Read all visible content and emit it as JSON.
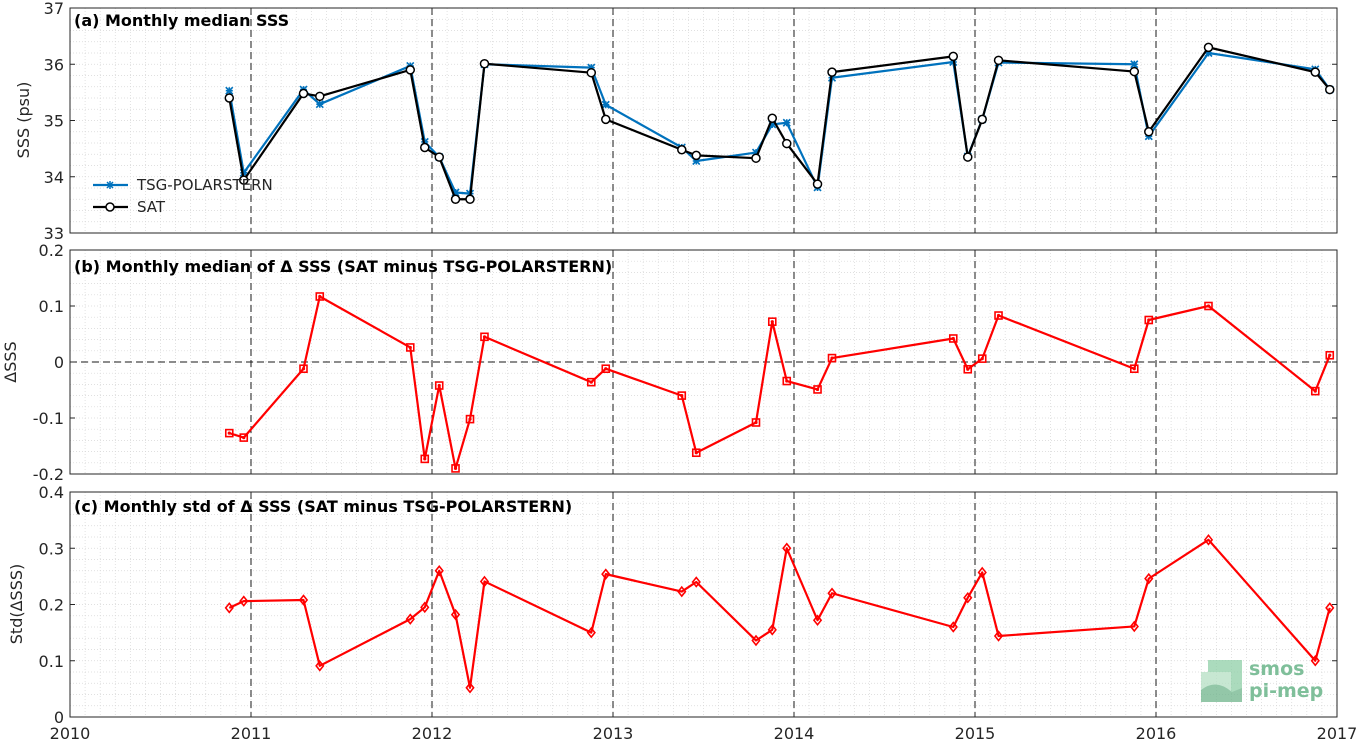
{
  "chart_data": [
    {
      "type": "line",
      "title": "(a) Monthly median SSS",
      "ylabel": "SSS (psu)",
      "xlim": [
        2010,
        2017
      ],
      "ylim": [
        33,
        37
      ],
      "yticks": [
        33,
        34,
        35,
        36,
        37
      ],
      "xticks": [
        2010,
        2011,
        2012,
        2013,
        2014,
        2015,
        2016,
        2017
      ],
      "grid": true,
      "minor_grid": true,
      "legend_position": "left",
      "series": [
        {
          "name": "TSG-POLARSTERN",
          "color": "#0072bd",
          "marker": "asterisk",
          "x": [
            2010.88,
            2010.96,
            2011.29,
            2011.38,
            2011.88,
            2011.96,
            2012.04,
            2012.13,
            2012.21,
            2012.29,
            2012.88,
            2012.96,
            2013.38,
            2013.46,
            2013.79,
            2013.88,
            2013.96,
            2014.13,
            2014.21,
            2014.88,
            2014.96,
            2015.04,
            2015.13,
            2015.88,
            2015.96,
            2016.29,
            2016.88,
            2016.96
          ],
          "y": [
            35.53,
            34.07,
            35.55,
            35.29,
            35.97,
            34.62,
            34.35,
            33.72,
            33.7,
            36.0,
            35.94,
            35.28,
            34.52,
            34.28,
            34.43,
            34.93,
            34.96,
            33.81,
            35.76,
            36.04,
            34.36,
            35.02,
            36.03,
            36.0,
            34.72,
            36.2,
            35.91,
            35.55
          ]
        },
        {
          "name": "SAT",
          "color": "#000000",
          "marker": "circle",
          "x": [
            2010.88,
            2010.96,
            2011.29,
            2011.38,
            2011.88,
            2011.96,
            2012.04,
            2012.13,
            2012.21,
            2012.29,
            2012.88,
            2012.96,
            2013.38,
            2013.46,
            2013.79,
            2013.88,
            2013.96,
            2014.13,
            2014.21,
            2014.88,
            2014.96,
            2015.04,
            2015.13,
            2015.88,
            2015.96,
            2016.29,
            2016.88,
            2016.96
          ],
          "y": [
            35.4,
            33.94,
            35.48,
            35.43,
            35.9,
            34.52,
            34.35,
            33.6,
            33.6,
            36.01,
            35.85,
            35.02,
            34.48,
            34.38,
            34.33,
            35.04,
            34.59,
            33.87,
            35.86,
            36.14,
            34.35,
            35.02,
            36.07,
            35.87,
            34.8,
            36.3,
            35.86,
            35.55
          ]
        }
      ]
    },
    {
      "type": "line",
      "title": "(b) Monthly median of Δ SSS (SAT minus TSG-POLARSTERN)",
      "ylabel": "ΔSSS",
      "xlim": [
        2010,
        2017
      ],
      "ylim": [
        -0.2,
        0.2
      ],
      "yticks": [
        -0.2,
        -0.1,
        0,
        0.1,
        0.2
      ],
      "ytick_labels": [
        "-0.2",
        "-0.1",
        "0",
        "0.1",
        "0.2"
      ],
      "xticks": [
        2010,
        2011,
        2012,
        2013,
        2014,
        2015,
        2016,
        2017
      ],
      "grid": true,
      "reference_line": 0,
      "series": [
        {
          "color": "#ff0000",
          "marker": "square",
          "x": [
            2010.88,
            2010.96,
            2011.29,
            2011.38,
            2011.88,
            2011.96,
            2012.04,
            2012.13,
            2012.21,
            2012.29,
            2012.88,
            2012.96,
            2013.38,
            2013.46,
            2013.79,
            2013.88,
            2013.96,
            2014.13,
            2014.21,
            2014.88,
            2014.96,
            2015.04,
            2015.13,
            2015.88,
            2015.96,
            2016.29,
            2016.88,
            2016.96
          ],
          "y": [
            -0.127,
            -0.135,
            -0.012,
            0.117,
            0.026,
            -0.173,
            -0.042,
            -0.19,
            -0.102,
            0.045,
            -0.036,
            -0.012,
            -0.06,
            -0.162,
            -0.108,
            0.072,
            -0.034,
            -0.049,
            0.007,
            0.042,
            -0.013,
            0.006,
            0.083,
            -0.012,
            0.075,
            0.1,
            -0.052,
            0.012
          ]
        }
      ]
    },
    {
      "type": "line",
      "title": "(c) Monthly std of Δ SSS (SAT minus TSG-POLARSTERN)",
      "ylabel": "Std(ΔSSS)",
      "xlim": [
        2010,
        2017
      ],
      "ylim": [
        0,
        0.4
      ],
      "yticks": [
        0,
        0.1,
        0.2,
        0.3,
        0.4
      ],
      "ytick_labels": [
        "0",
        "0.1",
        "0.2",
        "0.3",
        "0.4"
      ],
      "xticks": [
        2010,
        2011,
        2012,
        2013,
        2014,
        2015,
        2016,
        2017
      ],
      "grid": true,
      "series": [
        {
          "color": "#ff0000",
          "marker": "diamond",
          "x": [
            2010.88,
            2010.96,
            2011.29,
            2011.38,
            2011.88,
            2011.96,
            2012.04,
            2012.13,
            2012.21,
            2012.29,
            2012.88,
            2012.96,
            2013.38,
            2013.46,
            2013.79,
            2013.88,
            2013.96,
            2014.13,
            2014.21,
            2014.88,
            2014.96,
            2015.04,
            2015.13,
            2015.88,
            2015.96,
            2016.29,
            2016.88,
            2016.96
          ],
          "y": [
            0.194,
            0.206,
            0.208,
            0.091,
            0.174,
            0.195,
            0.26,
            0.182,
            0.052,
            0.241,
            0.15,
            0.254,
            0.223,
            0.24,
            0.136,
            0.155,
            0.3,
            0.172,
            0.22,
            0.16,
            0.212,
            0.257,
            0.144,
            0.161,
            0.246,
            0.315,
            0.1,
            0.194
          ]
        }
      ]
    }
  ],
  "xtick_labels": [
    "2010",
    "2011",
    "2012",
    "2013",
    "2014",
    "2015",
    "2016",
    "2017"
  ],
  "logo": {
    "line1": "smos",
    "line2": "pi-mep"
  }
}
